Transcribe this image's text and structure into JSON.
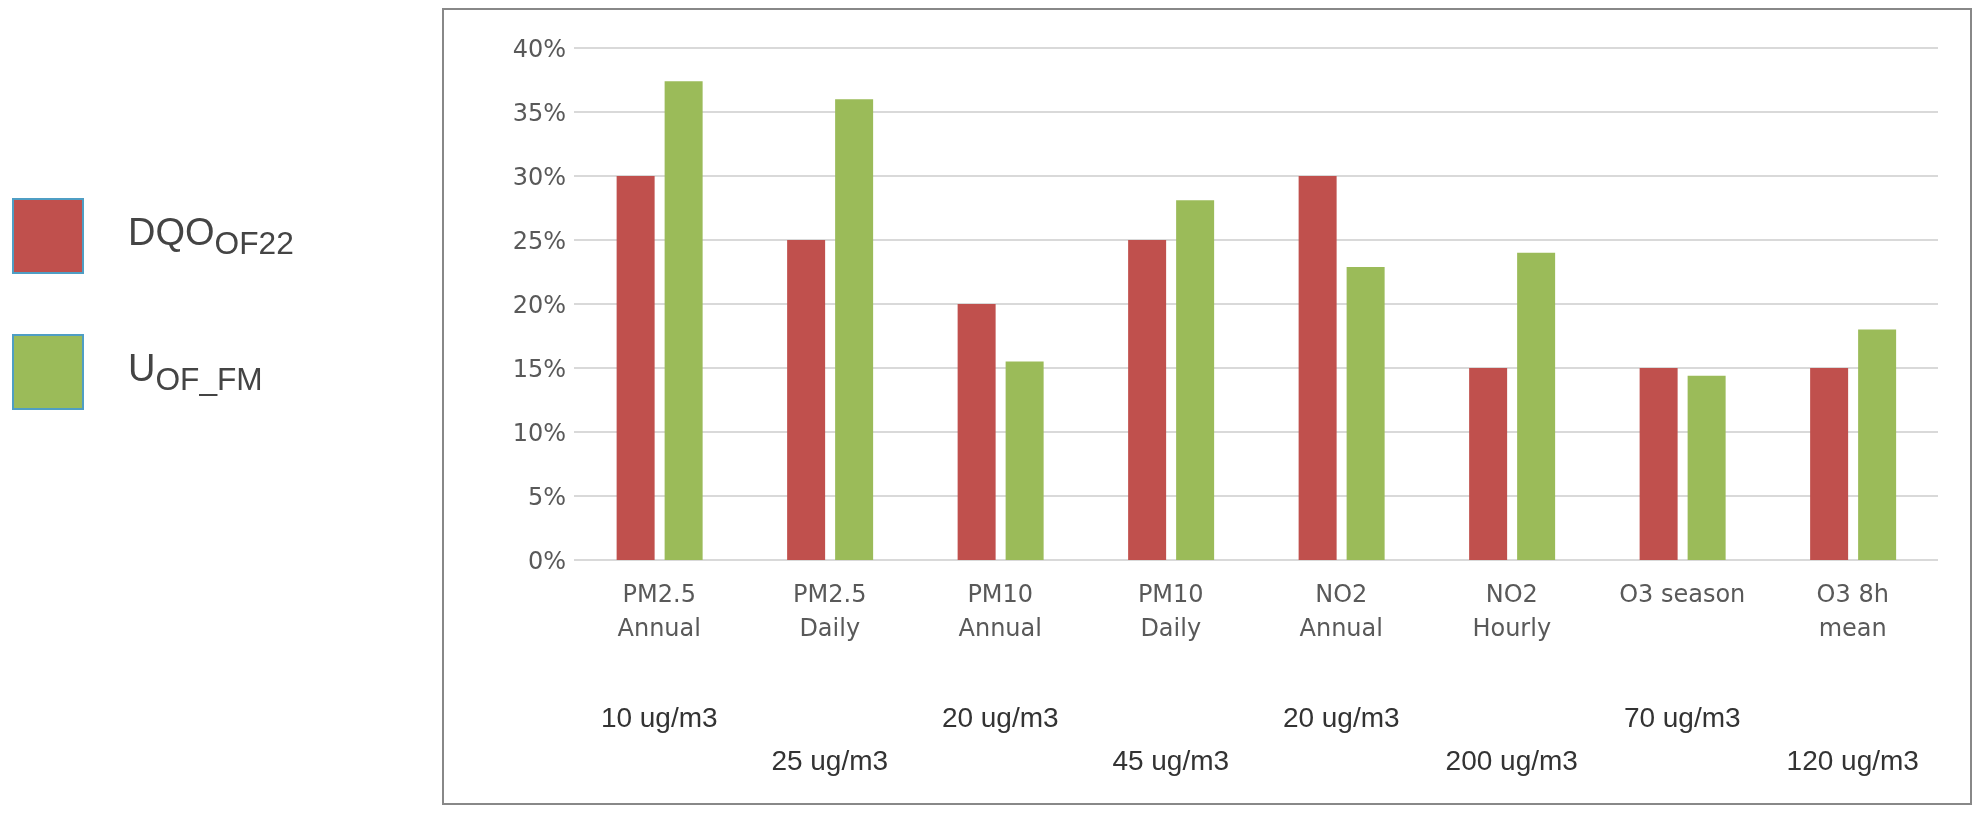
{
  "chart_data": {
    "type": "bar",
    "categories": [
      "PM2.5\nAnnual",
      "PM2.5\nDaily",
      "PM10\nAnnual",
      "PM10\nDaily",
      "NO2\nAnnual",
      "NO2\nHourly",
      "O3 season",
      "O3 8h\nmean"
    ],
    "series": [
      {
        "name": "DQO$_{OF22}$",
        "color": "#c0504d",
        "values": [
          30,
          25,
          20,
          25,
          30,
          15,
          15,
          15
        ]
      },
      {
        "name": "U$_{OF_FM}$",
        "color": "#9bbb59",
        "values": [
          37.4,
          36.0,
          15.5,
          28.1,
          22.9,
          24.0,
          14.4,
          18.0
        ]
      }
    ],
    "ylim": [
      0,
      40
    ],
    "yticks": [
      {
        "value": 0,
        "label": "0%"
      },
      {
        "value": 5,
        "label": "5%"
      },
      {
        "value": 10,
        "label": "10%"
      },
      {
        "value": 15,
        "label": "15%"
      },
      {
        "value": 20,
        "label": "20%"
      },
      {
        "value": 25,
        "label": "25%"
      },
      {
        "value": 30,
        "label": "30%"
      },
      {
        "value": 35,
        "label": "35%"
      },
      {
        "value": 40,
        "label": "40%"
      }
    ],
    "grid": "y",
    "legend": "left",
    "annotations": [
      "10 ug/m3",
      "25 ug/m3",
      "20 ug/m3",
      "45 ug/m3",
      "20 ug/m3",
      "200 ug/m3",
      "70 ug/m3",
      "120 ug/m3"
    ]
  }
}
